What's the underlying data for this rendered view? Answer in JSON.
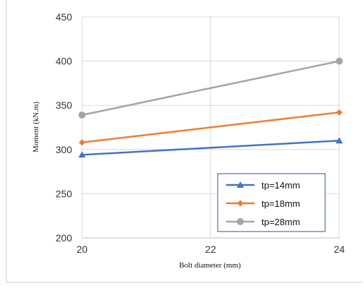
{
  "chart_data": {
    "type": "line",
    "xlabel": "Bolt diameter (mm)",
    "ylabel": "Moment (kN.m)",
    "xlim": [
      20,
      24
    ],
    "ylim": [
      200,
      450
    ],
    "x_ticks": [
      "20",
      "22",
      "24"
    ],
    "y_ticks": [
      "200",
      "250",
      "300",
      "350",
      "400",
      "450"
    ],
    "grid": true,
    "legend_position": "bottom-right",
    "series": [
      {
        "name": "tp=14mm",
        "color": "#4472C4",
        "marker": "triangle",
        "x": [
          20,
          24
        ],
        "values": [
          294,
          310
        ]
      },
      {
        "name": "tp=18mm",
        "color": "#ED7D31",
        "marker": "diamond",
        "x": [
          20,
          24
        ],
        "values": [
          308,
          342
        ]
      },
      {
        "name": "tp=28mm",
        "color": "#A5A5A5",
        "marker": "circle",
        "x": [
          20,
          24
        ],
        "values": [
          339,
          400
        ]
      }
    ]
  }
}
